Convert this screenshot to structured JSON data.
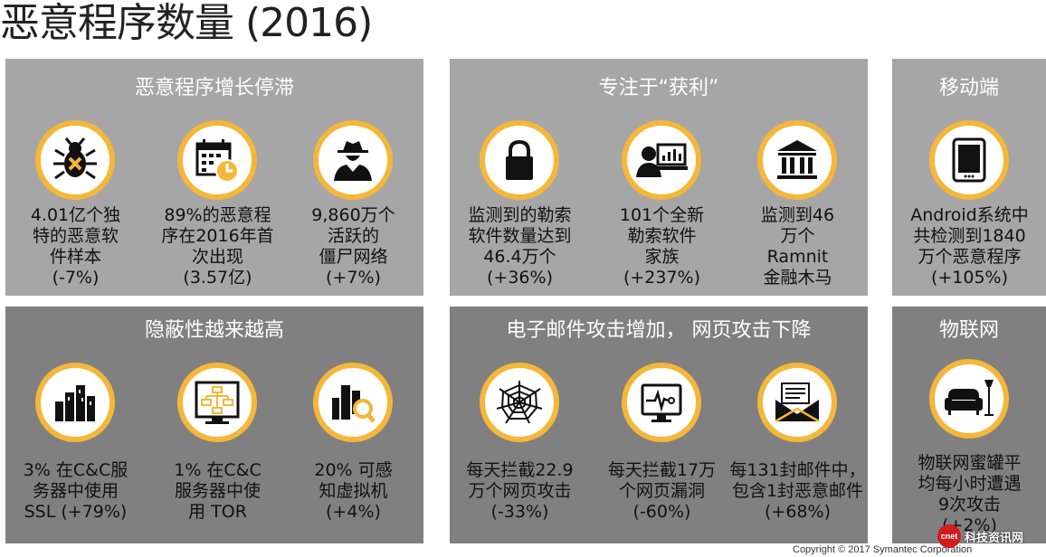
{
  "title": "恶意程序数量 (2016)",
  "colors": {
    "accent": "#f5b73a",
    "panel_light": "#a6a6a6",
    "panel_dark": "#808080"
  },
  "panels": [
    {
      "title": "恶意程序增长停滞",
      "items": [
        {
          "icon": "bug-icon",
          "lines": [
            "4.01亿个独",
            "特的恶意软",
            "件样本",
            "(-7%)"
          ]
        },
        {
          "icon": "calendar-clock-icon",
          "lines": [
            "89%的恶意程",
            "序在2016年首",
            "次出现",
            "(3.57亿)"
          ]
        },
        {
          "icon": "spy-icon",
          "lines": [
            "9,860万个",
            "活跃的",
            "僵尸网络",
            "(+7%)"
          ]
        }
      ]
    },
    {
      "title": "专注于“获利”",
      "items": [
        {
          "icon": "lock-icon",
          "lines": [
            "监测到的勒索",
            "软件数量达到",
            "46.4万个",
            "(+36%)"
          ]
        },
        {
          "icon": "person-computer-icon",
          "lines": [
            "101个全新",
            "勒索软件",
            "家族",
            "(+237%)"
          ]
        },
        {
          "icon": "bank-icon",
          "lines": [
            "监测到46",
            "万个",
            "Ramnit",
            "金融木马"
          ]
        }
      ]
    },
    {
      "title": "移动端",
      "items": [
        {
          "icon": "tablet-icon",
          "lines": [
            "Android系统中",
            "共检测到1840",
            "万个恶意程序",
            "(+105%)"
          ]
        }
      ]
    },
    {
      "title": "隐蔽性越来越高",
      "items": [
        {
          "icon": "city-icon",
          "lines": [
            "3% 在C&C服",
            "务器中使用",
            "SSL (+79%)"
          ]
        },
        {
          "icon": "network-diagram-icon",
          "lines": [
            "1% 在C&C",
            "服务器中使",
            "用 TOR"
          ]
        },
        {
          "icon": "search-city-icon",
          "lines": [
            "20% 可感",
            "知虚拟机",
            "(+4%)"
          ]
        }
      ]
    },
    {
      "title": "电子邮件攻击增加， 网页攻击下降",
      "items": [
        {
          "icon": "spider-web-icon",
          "lines": [
            "每天拦截22.9",
            "万个网页攻击",
            "(-33%)"
          ]
        },
        {
          "icon": "monitor-pulse-icon",
          "lines": [
            "每天拦截17万",
            "个网页漏洞",
            "(-60%)"
          ]
        },
        {
          "icon": "envelope-icon",
          "lines": [
            "每131封邮件中，",
            "包含1封恶意邮件",
            "(+68%)"
          ]
        }
      ]
    },
    {
      "title": "物联网",
      "items": [
        {
          "icon": "sofa-lamp-icon",
          "lines": [
            "物联网蜜罐平",
            "均每小时遭遇",
            "9次攻击",
            "(+2%)"
          ]
        }
      ]
    }
  ],
  "copyright": "Copyright © 2017 Symantec Corporation",
  "watermark": {
    "logo": "cnet",
    "text": "科技资讯网"
  }
}
